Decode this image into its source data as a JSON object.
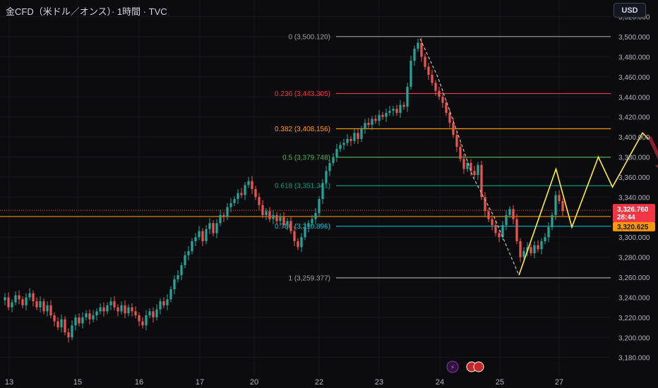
{
  "header": {
    "title": "金CFD（米ドル／オンス）· 1時間 · TVC"
  },
  "currency_button": {
    "label": "USD"
  },
  "colors": {
    "up": "#26a69a",
    "down": "#ef5350",
    "background": "#0c0c0e",
    "fib_0": "#9e9e9e",
    "fib_236": "#f23645",
    "fib_382": "#ff9800",
    "fib_5": "#4caf50",
    "fib_618": "#089981",
    "fib_786": "#00bcd4",
    "fib_1": "#9e9e9e",
    "projection": "#ffeb3b",
    "arrow": "#8b1e2a"
  },
  "chart_data": {
    "type": "candlestick",
    "ylim": [
      3170,
      3520
    ],
    "y_ticks": [
      "3,180.000",
      "3,200.000",
      "3,220.000",
      "3,240.000",
      "3,260.000",
      "3,280.000",
      "3,300.000",
      "3,320.000",
      "3,340.000",
      "3,360.000",
      "3,380.000",
      "3,400.000",
      "3,420.000",
      "3,440.000",
      "3,460.000",
      "3,480.000",
      "3,500.000",
      "3,520.000"
    ],
    "x_ticks": [
      "13",
      "15",
      "16",
      "17",
      "20",
      "22",
      "23",
      "24",
      "25",
      "27"
    ],
    "fib_levels": [
      {
        "label": "0 (3,500.120)",
        "price": 3500.12,
        "color_key": "fib_0"
      },
      {
        "label": "0.236 (3,443.305)",
        "price": 3443.305,
        "color_key": "fib_236"
      },
      {
        "label": "0.382 (3,408.156)",
        "price": 3408.156,
        "color_key": "fib_382"
      },
      {
        "label": "0.5 (3,379.748)",
        "price": 3379.748,
        "color_key": "fib_5"
      },
      {
        "label": "0.618 (3,351.341)",
        "price": 3351.341,
        "color_key": "fib_618"
      },
      {
        "label": "0.786 (3,310.896)",
        "price": 3310.896,
        "color_key": "fib_786"
      },
      {
        "label": "1 (3,259.377)",
        "price": 3259.377,
        "color_key": "fib_1"
      }
    ],
    "current_price": {
      "label": "3,326.760",
      "countdown": "28:44",
      "price": 3326.76
    },
    "alt_price": {
      "label": "3,320.625",
      "price": 3320.625
    },
    "price_path": [
      [
        0,
        3237
      ],
      [
        4,
        3240
      ],
      [
        8,
        3230
      ],
      [
        12,
        3235
      ],
      [
        16,
        3242
      ],
      [
        20,
        3238
      ],
      [
        24,
        3232
      ],
      [
        28,
        3240
      ],
      [
        32,
        3244
      ],
      [
        36,
        3236
      ],
      [
        40,
        3230
      ],
      [
        44,
        3236
      ],
      [
        48,
        3226
      ],
      [
        52,
        3232
      ],
      [
        56,
        3222
      ],
      [
        60,
        3216
      ],
      [
        64,
        3210
      ],
      [
        68,
        3218
      ],
      [
        72,
        3205
      ],
      [
        76,
        3200
      ],
      [
        80,
        3212
      ],
      [
        84,
        3220
      ],
      [
        88,
        3214
      ],
      [
        92,
        3220
      ],
      [
        96,
        3224
      ],
      [
        100,
        3218
      ],
      [
        104,
        3222
      ],
      [
        108,
        3226
      ],
      [
        112,
        3230
      ],
      [
        116,
        3226
      ],
      [
        120,
        3232
      ],
      [
        124,
        3236
      ],
      [
        128,
        3230
      ],
      [
        132,
        3226
      ],
      [
        136,
        3232
      ],
      [
        140,
        3224
      ],
      [
        144,
        3230
      ],
      [
        148,
        3226
      ],
      [
        152,
        3222
      ],
      [
        156,
        3216
      ],
      [
        160,
        3212
      ],
      [
        164,
        3222
      ],
      [
        168,
        3226
      ],
      [
        172,
        3220
      ],
      [
        176,
        3228
      ],
      [
        180,
        3236
      ],
      [
        184,
        3232
      ],
      [
        188,
        3238
      ],
      [
        192,
        3248
      ],
      [
        196,
        3258
      ],
      [
        200,
        3262
      ],
      [
        204,
        3272
      ],
      [
        208,
        3282
      ],
      [
        212,
        3286
      ],
      [
        216,
        3296
      ],
      [
        220,
        3300
      ],
      [
        224,
        3306
      ],
      [
        228,
        3296
      ],
      [
        232,
        3308
      ],
      [
        236,
        3314
      ],
      [
        240,
        3304
      ],
      [
        244,
        3314
      ],
      [
        248,
        3322
      ],
      [
        252,
        3320
      ],
      [
        256,
        3330
      ],
      [
        260,
        3334
      ],
      [
        264,
        3338
      ],
      [
        268,
        3344
      ],
      [
        272,
        3342
      ],
      [
        276,
        3352
      ],
      [
        280,
        3356
      ],
      [
        284,
        3348
      ],
      [
        288,
        3340
      ],
      [
        292,
        3332
      ],
      [
        296,
        3322
      ],
      [
        300,
        3326
      ],
      [
        304,
        3318
      ],
      [
        308,
        3322
      ],
      [
        312,
        3316
      ],
      [
        316,
        3320
      ],
      [
        320,
        3312
      ],
      [
        324,
        3316
      ],
      [
        328,
        3306
      ],
      [
        332,
        3296
      ],
      [
        336,
        3290
      ],
      [
        340,
        3300
      ],
      [
        344,
        3310
      ],
      [
        348,
        3314
      ],
      [
        352,
        3318
      ],
      [
        356,
        3324
      ],
      [
        360,
        3338
      ],
      [
        364,
        3354
      ],
      [
        368,
        3366
      ],
      [
        372,
        3374
      ],
      [
        376,
        3380
      ],
      [
        380,
        3388
      ],
      [
        384,
        3392
      ],
      [
        388,
        3394
      ],
      [
        392,
        3398
      ],
      [
        396,
        3396
      ],
      [
        400,
        3404
      ],
      [
        404,
        3398
      ],
      [
        408,
        3408
      ],
      [
        412,
        3414
      ],
      [
        416,
        3412
      ],
      [
        420,
        3418
      ],
      [
        424,
        3416
      ],
      [
        428,
        3422
      ],
      [
        432,
        3420
      ],
      [
        436,
        3424
      ],
      [
        440,
        3426
      ],
      [
        444,
        3428
      ],
      [
        448,
        3424
      ],
      [
        452,
        3432
      ],
      [
        456,
        3430
      ],
      [
        460,
        3450
      ],
      [
        464,
        3476
      ],
      [
        468,
        3488
      ],
      [
        472,
        3494
      ],
      [
        476,
        3480
      ],
      [
        480,
        3470
      ],
      [
        484,
        3462
      ],
      [
        488,
        3454
      ],
      [
        492,
        3446
      ],
      [
        496,
        3440
      ],
      [
        500,
        3434
      ],
      [
        504,
        3424
      ],
      [
        508,
        3414
      ],
      [
        512,
        3402
      ],
      [
        516,
        3390
      ],
      [
        520,
        3378
      ],
      [
        524,
        3368
      ],
      [
        528,
        3374
      ],
      [
        532,
        3366
      ],
      [
        536,
        3362
      ],
      [
        540,
        3372
      ],
      [
        544,
        3340
      ],
      [
        548,
        3326
      ],
      [
        552,
        3318
      ],
      [
        556,
        3312
      ],
      [
        560,
        3304
      ],
      [
        564,
        3300
      ],
      [
        568,
        3312
      ],
      [
        572,
        3322
      ],
      [
        576,
        3328
      ],
      [
        580,
        3318
      ],
      [
        584,
        3296
      ],
      [
        588,
        3280
      ],
      [
        592,
        3286
      ],
      [
        596,
        3290
      ],
      [
        600,
        3284
      ],
      [
        604,
        3292
      ],
      [
        608,
        3288
      ],
      [
        612,
        3296
      ],
      [
        616,
        3300
      ],
      [
        620,
        3310
      ],
      [
        624,
        3322
      ],
      [
        628,
        3342
      ],
      [
        632,
        3336
      ],
      [
        636,
        3326
      ]
    ],
    "projection_path": [
      [
        588,
        3262
      ],
      [
        630,
        3368
      ],
      [
        648,
        3310
      ],
      [
        678,
        3380
      ],
      [
        694,
        3350
      ],
      [
        728,
        3404
      ],
      [
        742,
        3392
      ]
    ],
    "dashed_path": [
      [
        476,
        3498
      ],
      [
        496,
        3460
      ],
      [
        516,
        3410
      ],
      [
        536,
        3360
      ],
      [
        560,
        3320
      ],
      [
        588,
        3262
      ]
    ],
    "future_arrow": {
      "from": [
        736,
        3400
      ],
      "to": [
        755,
        3364
      ]
    }
  },
  "footer": {
    "lightning_icon_label": "⚡"
  }
}
